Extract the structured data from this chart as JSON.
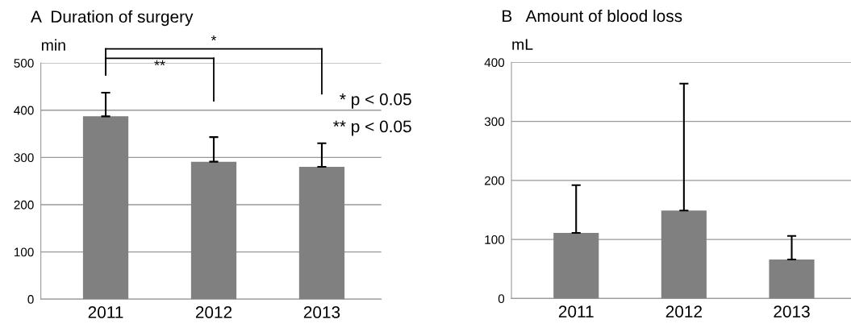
{
  "chart_data": [
    {
      "type": "bar",
      "title": "A  Duration of surgery",
      "ylabel": "min",
      "categories": [
        "2011",
        "2012",
        "2013"
      ],
      "values": [
        387,
        291,
        280
      ],
      "errors": [
        [
          387,
          437
        ],
        [
          291,
          343
        ],
        [
          280,
          330
        ]
      ],
      "color": "#808080",
      "ylim": [
        0,
        500
      ],
      "yticks": [
        0,
        100,
        200,
        300,
        400,
        500
      ],
      "grid": "y",
      "annotations": [
        "*",
        "**",
        "* p < 0.05",
        "** p < 0.05"
      ]
    },
    {
      "type": "bar",
      "title": "B   Amount of blood loss",
      "ylabel": "mL",
      "categories": [
        "2011",
        "2012",
        "2013"
      ],
      "values": [
        111,
        149,
        66
      ],
      "errors": [
        [
          111,
          192
        ],
        [
          149,
          364
        ],
        [
          66,
          106
        ]
      ],
      "color": "#808080",
      "ylim": [
        0,
        400
      ],
      "yticks": [
        0,
        100,
        200,
        300,
        400
      ],
      "grid": "y"
    }
  ]
}
